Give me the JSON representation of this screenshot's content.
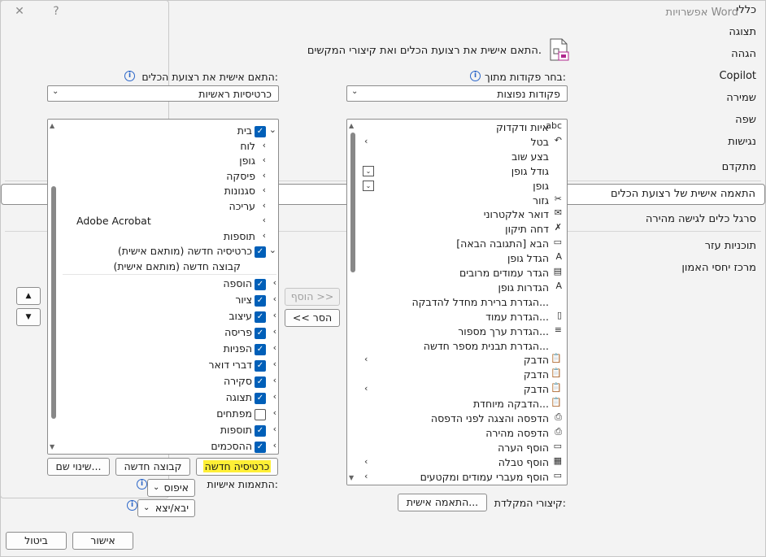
{
  "window": {
    "title": "אפשרויות Word",
    "help": "?",
    "close": "✕"
  },
  "sidebar": {
    "items": [
      {
        "label": "כללי"
      },
      {
        "label": "תצוגה"
      },
      {
        "label": "הגהה"
      },
      {
        "label": "Copilot"
      },
      {
        "label": "שמירה"
      },
      {
        "label": "שפה"
      },
      {
        "label": "נגישות"
      },
      {
        "label": "מתקדם"
      },
      {
        "label": "התאמה אישית של רצועת הכלים"
      },
      {
        "label": "סרגל כלים לגישה מהירה"
      },
      {
        "label": "תוכניות עזר"
      },
      {
        "label": "מרכז יחסי האמון"
      }
    ]
  },
  "header": {
    "text": "התאם אישית את רצועת הכלים ואת קיצורי המקשים."
  },
  "left_panel": {
    "label": "בחר פקודות מתוך:",
    "combo_value": "פקודות נפוצות",
    "commands": [
      {
        "label": "איות ודקדוק",
        "icon": "abc"
      },
      {
        "label": "בטל",
        "icon": "↶"
      },
      {
        "label": "בצע שוב",
        "icon": ""
      },
      {
        "label": "גודל גופן",
        "icon": ""
      },
      {
        "label": "גופן",
        "icon": ""
      },
      {
        "label": "גזור",
        "icon": "✂"
      },
      {
        "label": "דואר אלקטרוני",
        "icon": "✉"
      },
      {
        "label": "דחה תיקון",
        "icon": "✗"
      },
      {
        "label": "הבא [התגובה הבאה]",
        "icon": "▭"
      },
      {
        "label": "הגדל גופן",
        "icon": "A"
      },
      {
        "label": "הגדר עמודים מרובים",
        "icon": "▤"
      },
      {
        "label": "הגדרות גופן",
        "icon": "A"
      },
      {
        "label": "הגדרת ברירת מחדל להדבקה...",
        "icon": ""
      },
      {
        "label": "הגדרת עמוד...",
        "icon": "▯"
      },
      {
        "label": "הגדרת ערך מספור...",
        "icon": "≡"
      },
      {
        "label": "הגדרת תבנית מספר חדשה...",
        "icon": ""
      },
      {
        "label": "הדבק",
        "icon": "📋"
      },
      {
        "label": "הדבק",
        "icon": "📋"
      },
      {
        "label": "הדבק",
        "icon": "📋"
      },
      {
        "label": "הדבקה מיוחדת...",
        "icon": "📋"
      },
      {
        "label": "הדפסה והצגה לפני הדפסה",
        "icon": "⎙"
      },
      {
        "label": "הדפסה מהירה",
        "icon": "⎙"
      },
      {
        "label": "הוסף הערה",
        "icon": "▭"
      },
      {
        "label": "הוסף טבלה",
        "icon": "▦"
      },
      {
        "label": "הוסף מעברי עמודים ומקטעים",
        "icon": "▭"
      }
    ],
    "keyboard_label": "קיצורי המקלדת:",
    "keyboard_button": "התאמה אישית..."
  },
  "middle": {
    "add_button": "הוסף >>",
    "remove_button": "<< הסר"
  },
  "right_panel": {
    "label": "התאם אישית את רצועת הכלים:",
    "combo_value": "כרטיסיות ראשיות",
    "tree": [
      {
        "label": "בית",
        "level": 0,
        "checked": true,
        "expanded": true
      },
      {
        "label": "לוח",
        "level": 1
      },
      {
        "label": "גופן",
        "level": 1
      },
      {
        "label": "פיסקה",
        "level": 1
      },
      {
        "label": "סגנונות",
        "level": 1
      },
      {
        "label": "עריכה",
        "level": 1
      },
      {
        "label": "Adobe Acrobat",
        "level": 1
      },
      {
        "label": "תוספות",
        "level": 1
      },
      {
        "label": "כרטיסיה חדשה (מותאם אישית)",
        "level": 0,
        "checked": true,
        "expanded": true
      },
      {
        "label": "קבוצה חדשה (מותאם אישית)",
        "level": 1,
        "editing": true
      },
      {
        "label": "הוספה",
        "level": 0,
        "checked": true
      },
      {
        "label": "ציור",
        "level": 0,
        "checked": true
      },
      {
        "label": "עיצוב",
        "level": 0,
        "checked": true
      },
      {
        "label": "פריסה",
        "level": 0,
        "checked": true
      },
      {
        "label": "הפניות",
        "level": 0,
        "checked": true
      },
      {
        "label": "דברי דואר",
        "level": 0,
        "checked": true
      },
      {
        "label": "סקירה",
        "level": 0,
        "checked": true
      },
      {
        "label": "תצוגה",
        "level": 0,
        "checked": true
      },
      {
        "label": "מפתחים",
        "level": 0,
        "checked": false
      },
      {
        "label": "תוספות",
        "level": 0,
        "checked": true
      },
      {
        "label": "ההסכמים",
        "level": 0,
        "checked": true
      }
    ],
    "new_tab": "כרטיסיה חדשה",
    "new_group": "קבוצה חדשה",
    "rename": "שינוי שם...",
    "customizations_label": "התאמות אישיות:",
    "reset": "איפוס",
    "import_export": "יבא/יצא"
  },
  "footer": {
    "ok": "אישור",
    "cancel": "ביטול"
  }
}
